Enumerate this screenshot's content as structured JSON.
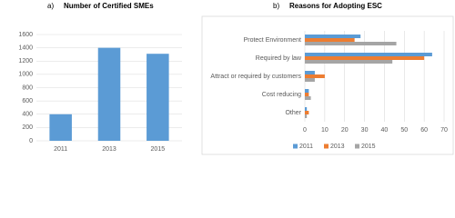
{
  "chart_data": [
    {
      "type": "bar",
      "label": "a)",
      "title": "Number of Certified SMEs",
      "categories": [
        "2011",
        "2013",
        "2015"
      ],
      "values": [
        400,
        1400,
        1310
      ],
      "color": "#5b9bd5",
      "ylim": [
        0,
        1600
      ],
      "yticks": [
        0,
        200,
        400,
        600,
        800,
        1000,
        1200,
        1400,
        1600
      ],
      "grid": true
    },
    {
      "type": "hbar",
      "label": "b)",
      "title": "Reasons for Adopting ESC",
      "categories": [
        "Protect Environment",
        "Required by law",
        "Attract or required by customers",
        "Cost reducing",
        "Other"
      ],
      "series": [
        {
          "name": "2011",
          "color": "#5b9bd5",
          "values": [
            28,
            64,
            5,
            2,
            1
          ]
        },
        {
          "name": "2013",
          "color": "#ed7d31",
          "values": [
            25,
            60,
            10,
            2,
            2
          ]
        },
        {
          "name": "2015",
          "color": "#a5a5a5",
          "values": [
            46,
            44,
            5,
            3,
            1
          ]
        }
      ],
      "xlim": [
        0,
        70
      ],
      "xticks": [
        0,
        10,
        20,
        30,
        40,
        50,
        60,
        70
      ],
      "grid": true,
      "legend": "bottom"
    }
  ]
}
